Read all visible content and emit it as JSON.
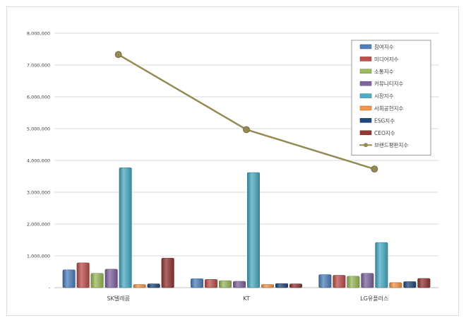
{
  "chart_data": {
    "type": "bar",
    "title": "",
    "xlabel": "",
    "ylabel": "",
    "categories": [
      "SK텔레콤",
      "KT",
      "LG유플러스"
    ],
    "ylim": [
      0,
      8000000
    ],
    "yticks": [
      "-",
      "1,000,000",
      "2,000,000",
      "3,000,000",
      "4,000,000",
      "5,000,000",
      "6,000,000",
      "7,000,000",
      "8,000,000"
    ],
    "grid": true,
    "legend_position": "top-right",
    "series": [
      {
        "name": "참여지수",
        "kind": "bar",
        "color": "#4f81bd",
        "values": [
          560000,
          280000,
          410000
        ]
      },
      {
        "name": "미디어지수",
        "kind": "bar",
        "color": "#c0504d",
        "values": [
          780000,
          260000,
          390000
        ]
      },
      {
        "name": "소통지수",
        "kind": "bar",
        "color": "#9bbb59",
        "values": [
          450000,
          220000,
          360000
        ]
      },
      {
        "name": "커뮤니티지수",
        "kind": "bar",
        "color": "#8064a2",
        "values": [
          580000,
          200000,
          450000
        ]
      },
      {
        "name": "시장지수",
        "kind": "bar",
        "color": "#4bacc6",
        "values": [
          3770000,
          3620000,
          1420000
        ]
      },
      {
        "name": "사회공헌지수",
        "kind": "bar",
        "color": "#f79646",
        "values": [
          100000,
          100000,
          160000
        ]
      },
      {
        "name": "ESG지수",
        "kind": "bar",
        "color": "#1f497d",
        "values": [
          120000,
          130000,
          190000
        ]
      },
      {
        "name": "CEO지수",
        "kind": "bar",
        "color": "#943634",
        "values": [
          930000,
          120000,
          290000
        ]
      },
      {
        "name": "브랜드평판지수",
        "kind": "line",
        "color": "#948a54",
        "values": [
          7330000,
          4970000,
          3730000
        ]
      }
    ]
  }
}
